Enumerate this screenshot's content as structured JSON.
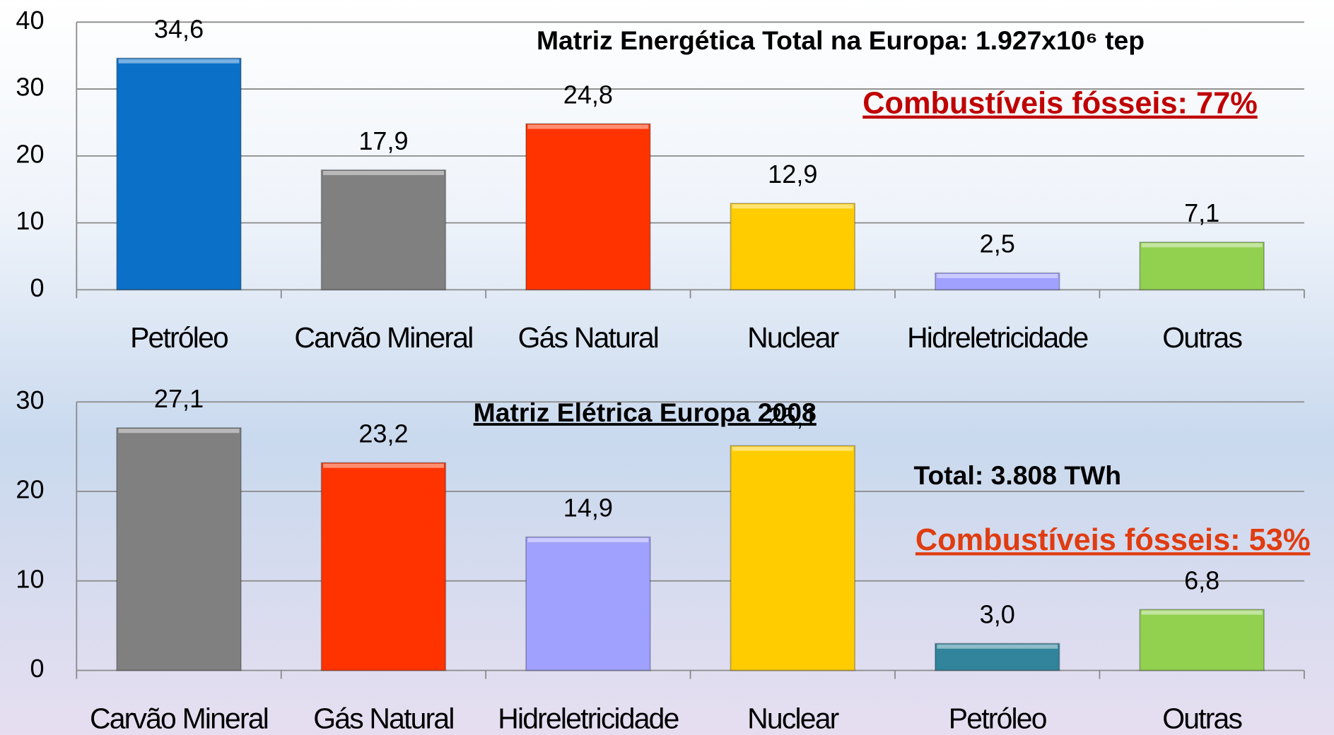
{
  "chart_data": [
    {
      "type": "bar",
      "title": "Matriz Energética Total na Europa: 1.927x10⁶  tep",
      "annotations": [
        "Combustíveis fósseis: 77%"
      ],
      "categories": [
        "Petróleo",
        "Carvão Mineral",
        "Gás Natural",
        "Nuclear",
        "Hidreletricidade",
        "Outras"
      ],
      "values": [
        34.6,
        17.9,
        24.8,
        12.9,
        2.5,
        7.1
      ],
      "value_labels": [
        "34,6",
        "17,9",
        "24,8",
        "12,9",
        "2,5",
        "7,1"
      ],
      "colors": [
        "#0a70c8",
        "#808080",
        "#ff3300",
        "#ffcc00",
        "#a0a0ff",
        "#92d050"
      ],
      "ylim": [
        0,
        40
      ],
      "yticks": [
        0,
        10,
        20,
        30,
        40
      ],
      "grid": true
    },
    {
      "type": "bar",
      "title": "Matriz Elétrica Europa 2008",
      "annotations": [
        "Total: 3.808  TWh",
        "Combustíveis fósseis: 53%"
      ],
      "categories": [
        "Carvão Mineral",
        "Gás Natural",
        "Hidreletricidade",
        "Nuclear",
        "Petróleo",
        "Outras"
      ],
      "values": [
        27.1,
        23.2,
        14.9,
        25.1,
        3.0,
        6.8
      ],
      "value_labels": [
        "27,1",
        "23,2",
        "14,9",
        "25,1",
        "3,0",
        "6,8"
      ],
      "colors": [
        "#808080",
        "#ff3300",
        "#a0a0ff",
        "#ffcc00",
        "#31849b",
        "#92d050"
      ],
      "ylim": [
        0,
        30
      ],
      "yticks": [
        0,
        10,
        20,
        30
      ],
      "grid": true
    }
  ]
}
